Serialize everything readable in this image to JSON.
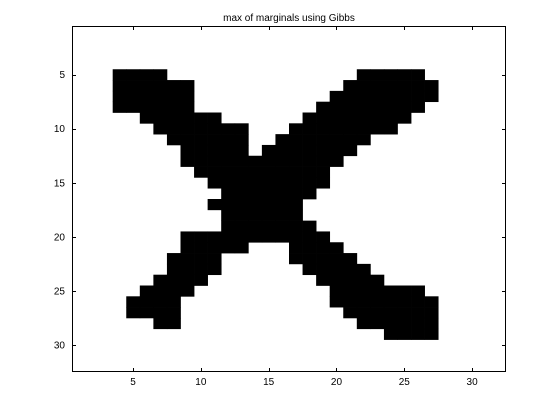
{
  "chart_data": {
    "type": "heatmap",
    "title": "max of marginals using Gibbs",
    "xlabel": "",
    "ylabel": "",
    "xlim": [
      0.5,
      32.5
    ],
    "ylim": [
      0.5,
      32.5
    ],
    "y_reversed": true,
    "xticks": [
      5,
      10,
      15,
      20,
      25,
      30
    ],
    "yticks": [
      5,
      10,
      15,
      20,
      25,
      30
    ],
    "xtick_labels": [
      "5",
      "10",
      "15",
      "20",
      "25",
      "30"
    ],
    "ytick_labels": [
      "5",
      "10",
      "15",
      "20",
      "25",
      "30"
    ],
    "grid": false,
    "colors": {
      "on": "#000000",
      "off": "#ffffff",
      "axes": "#000000"
    },
    "legend": "none",
    "values_on": 1,
    "values_off": 0,
    "rows": [
      {
        "row": 5,
        "on_ranges": [
          [
            4,
            7
          ],
          [
            22,
            26
          ]
        ]
      },
      {
        "row": 6,
        "on_ranges": [
          [
            4,
            9
          ],
          [
            21,
            27
          ]
        ]
      },
      {
        "row": 7,
        "on_ranges": [
          [
            4,
            9
          ],
          [
            20,
            27
          ]
        ]
      },
      {
        "row": 8,
        "on_ranges": [
          [
            4,
            9
          ],
          [
            19,
            26
          ]
        ]
      },
      {
        "row": 9,
        "on_ranges": [
          [
            6,
            11
          ],
          [
            18,
            25
          ]
        ]
      },
      {
        "row": 10,
        "on_ranges": [
          [
            7,
            13
          ],
          [
            17,
            24
          ]
        ]
      },
      {
        "row": 11,
        "on_ranges": [
          [
            8,
            13
          ],
          [
            16,
            22
          ]
        ]
      },
      {
        "row": 12,
        "on_ranges": [
          [
            9,
            13
          ],
          [
            15,
            21
          ]
        ]
      },
      {
        "row": 13,
        "on_ranges": [
          [
            9,
            20
          ]
        ]
      },
      {
        "row": 14,
        "on_ranges": [
          [
            10,
            19
          ]
        ]
      },
      {
        "row": 15,
        "on_ranges": [
          [
            11,
            19
          ]
        ]
      },
      {
        "row": 16,
        "on_ranges": [
          [
            12,
            18
          ]
        ]
      },
      {
        "row": 17,
        "on_ranges": [
          [
            11,
            17
          ]
        ]
      },
      {
        "row": 18,
        "on_ranges": [
          [
            12,
            17
          ]
        ]
      },
      {
        "row": 19,
        "on_ranges": [
          [
            12,
            18
          ]
        ]
      },
      {
        "row": 20,
        "on_ranges": [
          [
            9,
            19
          ]
        ]
      },
      {
        "row": 21,
        "on_ranges": [
          [
            9,
            13
          ],
          [
            17,
            20
          ]
        ]
      },
      {
        "row": 22,
        "on_ranges": [
          [
            8,
            11
          ],
          [
            17,
            21
          ]
        ]
      },
      {
        "row": 23,
        "on_ranges": [
          [
            8,
            11
          ],
          [
            18,
            22
          ]
        ]
      },
      {
        "row": 24,
        "on_ranges": [
          [
            7,
            10
          ],
          [
            19,
            23
          ]
        ]
      },
      {
        "row": 25,
        "on_ranges": [
          [
            6,
            9
          ],
          [
            20,
            26
          ]
        ]
      },
      {
        "row": 26,
        "on_ranges": [
          [
            5,
            8
          ],
          [
            20,
            27
          ]
        ]
      },
      {
        "row": 27,
        "on_ranges": [
          [
            5,
            8
          ],
          [
            21,
            27
          ]
        ]
      },
      {
        "row": 28,
        "on_ranges": [
          [
            7,
            8
          ],
          [
            22,
            27
          ]
        ]
      },
      {
        "row": 29,
        "on_ranges": [
          [
            24,
            27
          ]
        ]
      }
    ]
  }
}
